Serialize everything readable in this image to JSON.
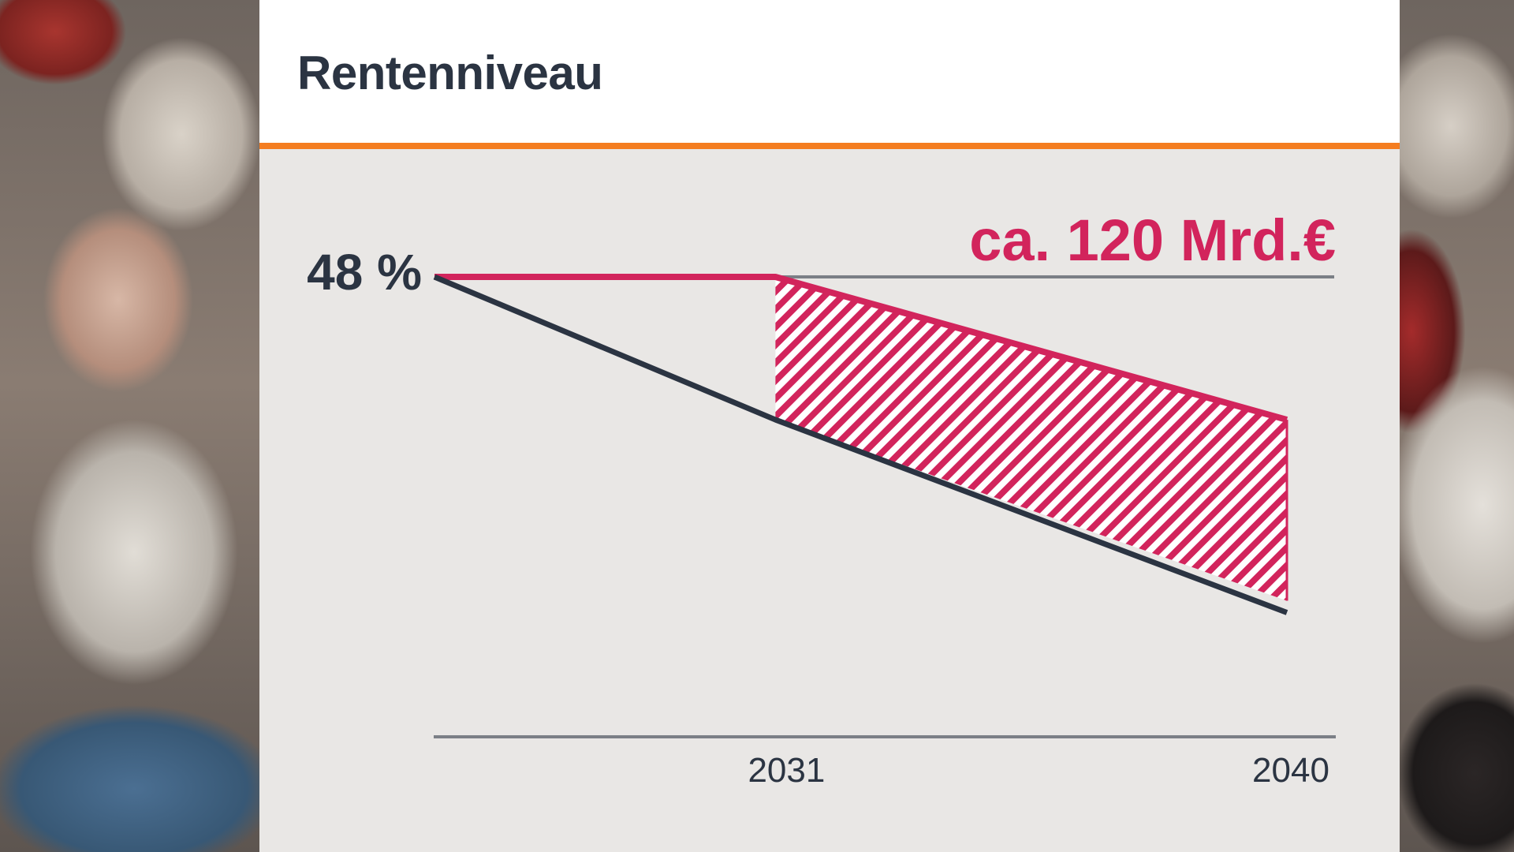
{
  "card": {
    "title": "Rentenniveau"
  },
  "chart_data": {
    "type": "line",
    "x": [
      2025,
      2031,
      2040
    ],
    "xticks": [
      "2031",
      "2040"
    ],
    "start_label": "48 %",
    "ylim": [
      35,
      50
    ],
    "series": [
      {
        "values": [
          48,
          48,
          44.4
        ],
        "color": "#d2245c"
      },
      {
        "values": [
          48,
          44.4,
          39.6
        ],
        "color": "#2b3442"
      }
    ],
    "shaded_gap": {
      "from_x": 2031,
      "to_x": 2040,
      "pattern": "diagonal-hatch",
      "color": "#d2245c"
    },
    "annotation": "ca. 120 Mrd.€",
    "colors": {
      "accent": "#f47d20",
      "pink": "#d2245c",
      "navy": "#2b3442",
      "axis": "#7b7f86"
    }
  }
}
